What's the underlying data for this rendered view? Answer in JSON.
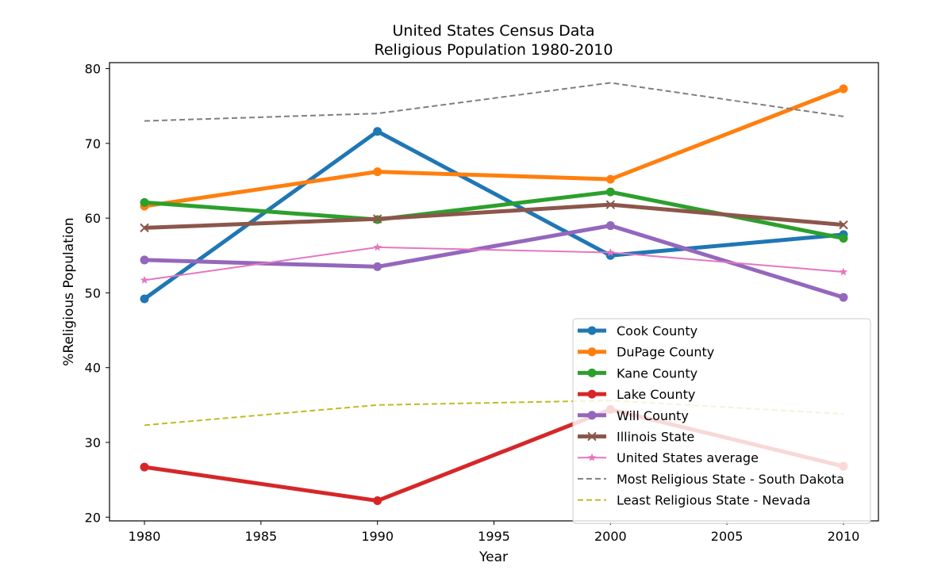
{
  "chart_data": {
    "type": "line",
    "title": "United States Census Data",
    "subtitle": "Religious Population 1980-2010",
    "xlabel": "Year",
    "ylabel": "%Religious Population",
    "xlim": [
      1978.5,
      2011.5
    ],
    "ylim": [
      19.5,
      80.8
    ],
    "x_ticks": [
      1980,
      1985,
      1990,
      1995,
      2000,
      2005,
      2010
    ],
    "y_ticks": [
      20,
      30,
      40,
      50,
      60,
      70,
      80
    ],
    "grid": false,
    "legend_position": "lower-right",
    "x": [
      1980,
      1990,
      2000,
      2010
    ],
    "series": [
      {
        "name": "Cook County",
        "values": [
          49.2,
          71.6,
          55.0,
          57.8
        ],
        "color": "#1f77b4",
        "marker": "circle",
        "width": 5,
        "dash": "solid"
      },
      {
        "name": "DuPage County",
        "values": [
          61.6,
          66.2,
          65.2,
          77.3
        ],
        "color": "#ff7f0e",
        "marker": "circle",
        "width": 5,
        "dash": "solid"
      },
      {
        "name": "Kane County",
        "values": [
          62.1,
          59.8,
          63.5,
          57.3
        ],
        "color": "#2ca02c",
        "marker": "circle",
        "width": 5,
        "dash": "solid"
      },
      {
        "name": "Lake County",
        "values": [
          26.7,
          22.2,
          34.4,
          26.8
        ],
        "color": "#d62728",
        "marker": "circle",
        "width": 5,
        "dash": "solid"
      },
      {
        "name": "Will County",
        "values": [
          54.4,
          53.5,
          59.0,
          49.4
        ],
        "color": "#9467bd",
        "marker": "circle",
        "width": 5,
        "dash": "solid"
      },
      {
        "name": "Illinois State",
        "values": [
          58.7,
          59.9,
          61.8,
          59.1
        ],
        "color": "#8c564b",
        "marker": "x",
        "width": 5,
        "dash": "solid"
      },
      {
        "name": "United States average",
        "values": [
          51.7,
          56.1,
          55.4,
          52.8
        ],
        "color": "#e377c2",
        "marker": "star",
        "width": 2,
        "dash": "solid"
      },
      {
        "name": "Most Religious State - South Dakota",
        "values": [
          73.0,
          74.0,
          78.1,
          73.6
        ],
        "color": "#7f7f7f",
        "marker": "none",
        "width": 2,
        "dash": "dashed"
      },
      {
        "name": "Least Religious State - Nevada",
        "values": [
          32.3,
          35.0,
          35.6,
          33.8
        ],
        "color": "#bcbd22",
        "marker": "none",
        "width": 2,
        "dash": "dashed"
      }
    ]
  }
}
